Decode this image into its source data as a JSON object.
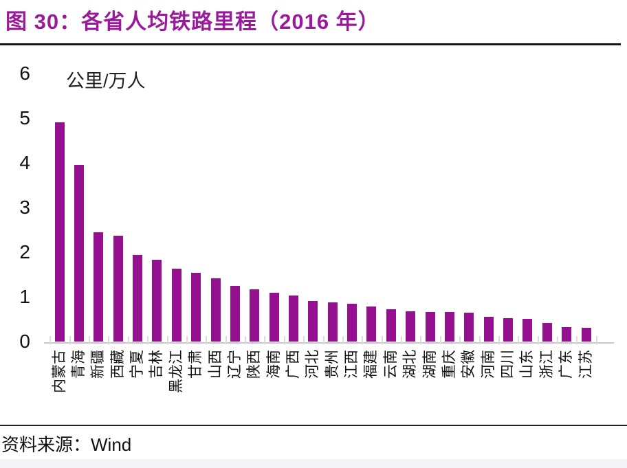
{
  "figure": {
    "title": "图 30：各省人均铁路里程（2016 年）"
  },
  "chart_data": {
    "type": "bar",
    "title": "各省人均铁路里程（2016 年）",
    "xlabel": "",
    "ylabel": "公里/万人",
    "ylim": [
      0,
      6
    ],
    "yticks": [
      0,
      1,
      2,
      3,
      4,
      5,
      6
    ],
    "grid": false,
    "legend_position": "none",
    "categories": [
      "内蒙古",
      "青海",
      "新疆",
      "西藏",
      "宁夏",
      "吉林",
      "黑龙江",
      "甘肃",
      "山西",
      "辽宁",
      "陕西",
      "海南",
      "广西",
      "河北",
      "贵州",
      "江西",
      "福建",
      "云南",
      "湖北",
      "湖南",
      "重庆",
      "安徽",
      "河南",
      "四川",
      "山东",
      "浙江",
      "广东",
      "江苏"
    ],
    "values": [
      4.91,
      3.95,
      2.44,
      2.37,
      1.94,
      1.83,
      1.63,
      1.54,
      1.41,
      1.24,
      1.17,
      1.09,
      1.03,
      0.9,
      0.88,
      0.84,
      0.78,
      0.72,
      0.67,
      0.66,
      0.66,
      0.65,
      0.56,
      0.52,
      0.5,
      0.42,
      0.33,
      0.31
    ]
  },
  "source": {
    "label": "资料来源：",
    "value": "Wind"
  },
  "colors": {
    "title": "#9A1B9A",
    "bar": "#94108F",
    "axis_line": "#C8C8C8",
    "tick_mark": "#DCDCDC",
    "text": "#111111"
  }
}
